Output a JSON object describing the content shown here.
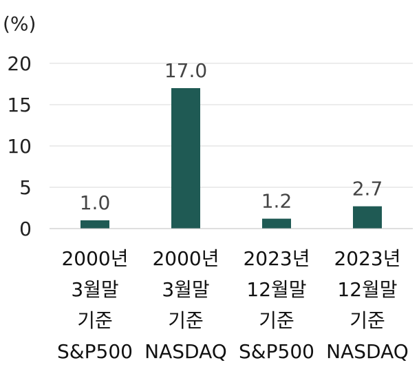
{
  "chart_data": {
    "type": "bar",
    "unit_label": "(%)",
    "categories": [
      [
        "2000년",
        "3월말",
        "기준",
        "S&P500"
      ],
      [
        "2000년",
        "3월말",
        "기준",
        "NASDAQ"
      ],
      [
        "2023년",
        "12월말",
        "기준",
        "S&P500"
      ],
      [
        "2023년",
        "12월말",
        "기준",
        "NASDAQ"
      ]
    ],
    "values": [
      1.0,
      17.0,
      1.2,
      2.7
    ],
    "data_labels": [
      "1.0",
      "17.0",
      "1.2",
      "2.7"
    ],
    "yticks": [
      0,
      5,
      10,
      15,
      20
    ],
    "ylim": [
      0,
      20
    ],
    "grid": true,
    "colors": {
      "bar": "#1f5a54",
      "grid": "#d9d9d9",
      "axis": "#bfbfbf"
    }
  }
}
